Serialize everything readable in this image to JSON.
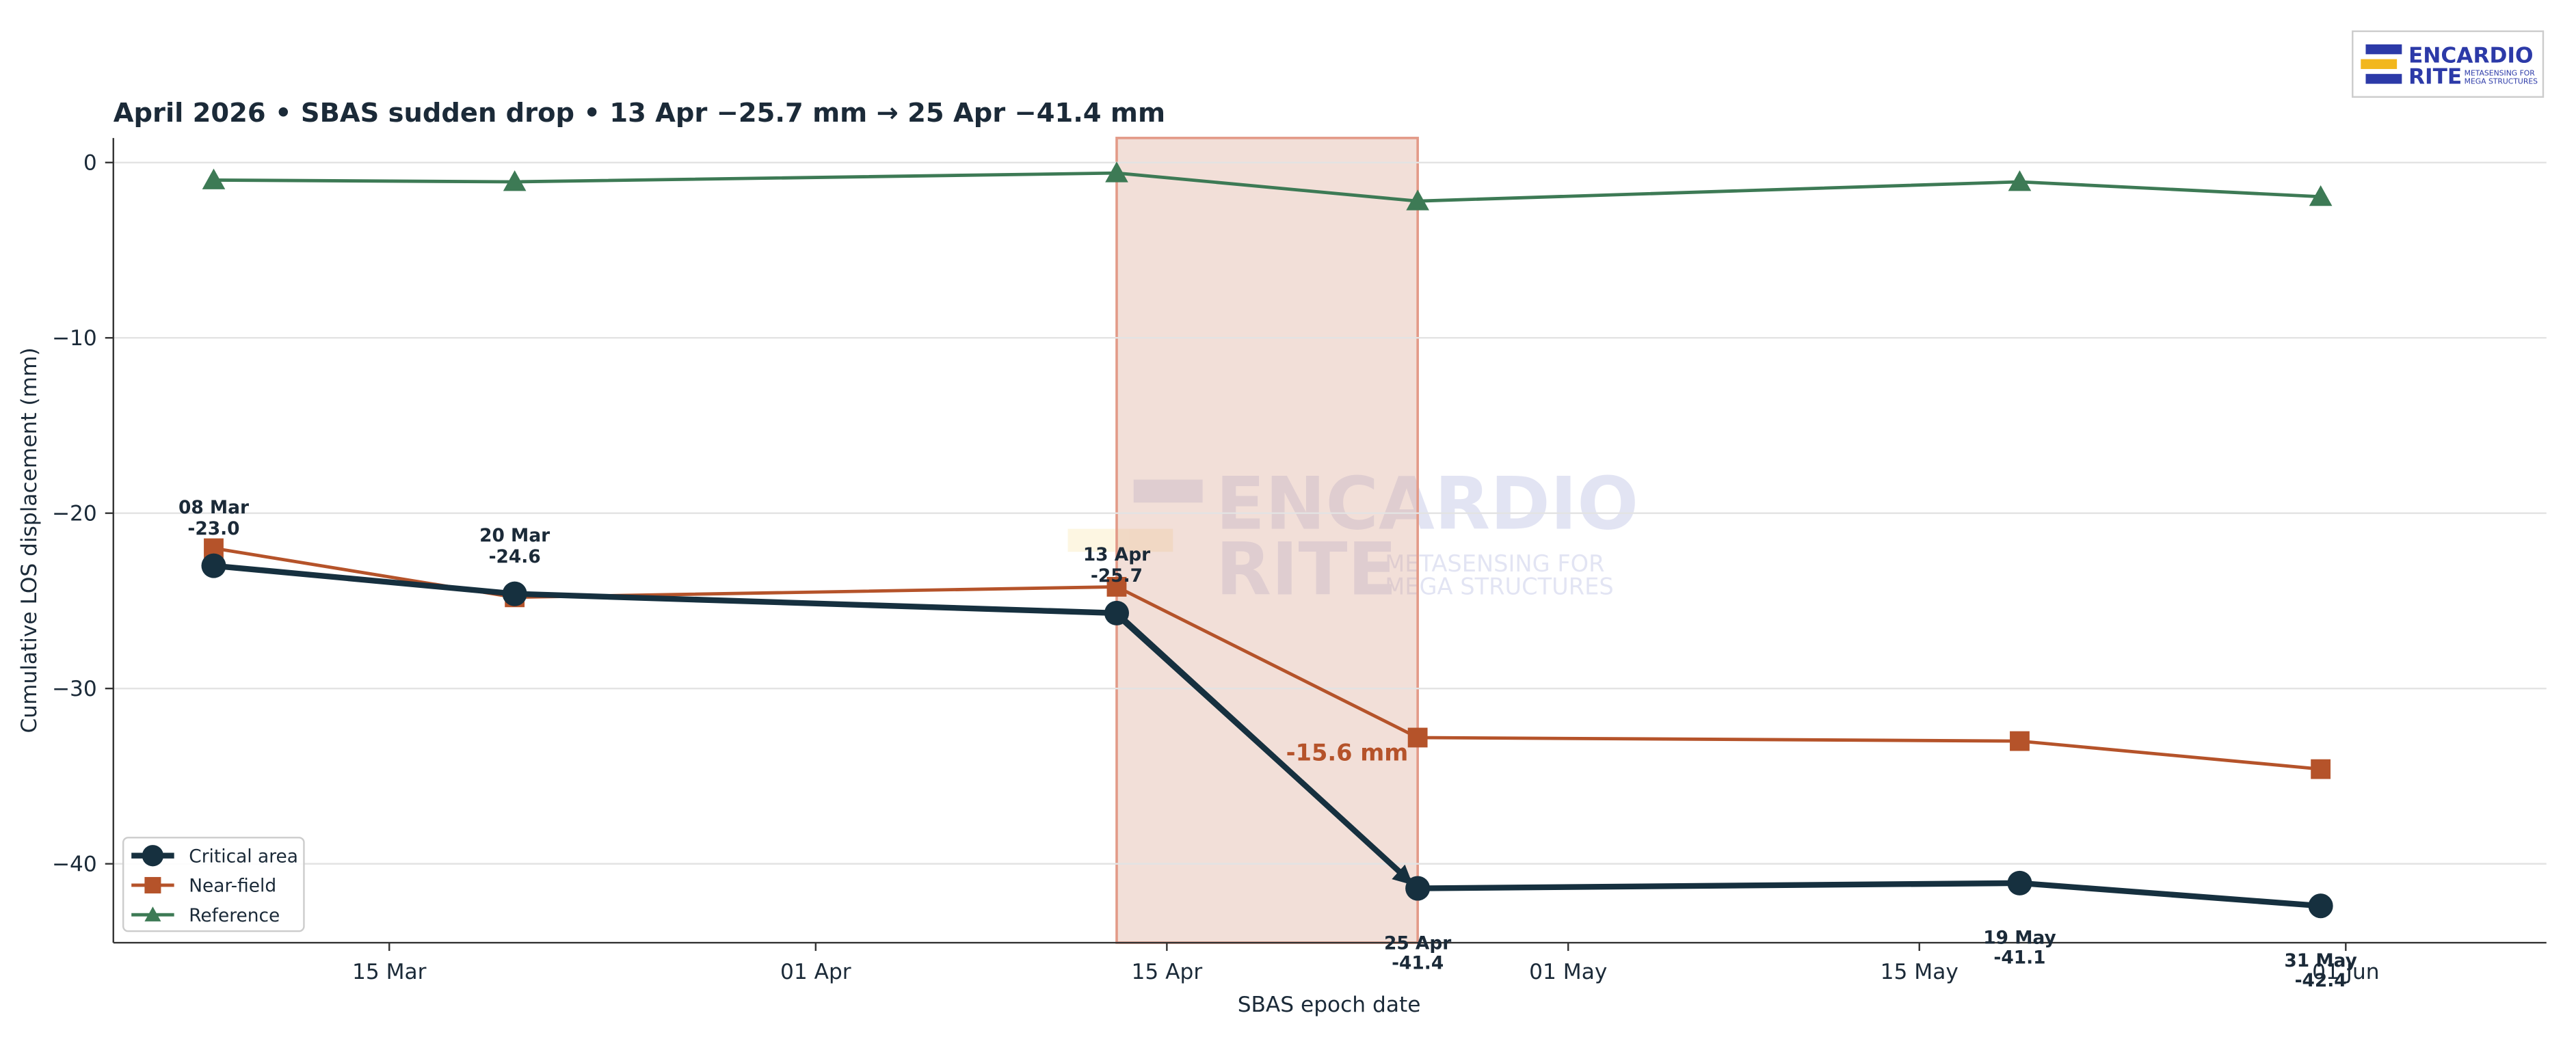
{
  "chart_data": {
    "type": "line",
    "title": "April 2026  •  SBAS sudden drop  •  13 Apr −25.7 mm  →  25 Apr −41.4 mm",
    "xlabel": "SBAS epoch date",
    "ylabel": "Cumulative LOS displacement (mm)",
    "x": [
      "08 Mar",
      "20 Mar",
      "13 Apr",
      "25 Apr",
      "19 May",
      "31 May"
    ],
    "series": [
      {
        "name": "Critical area",
        "color": "#16303f",
        "values": [
          -23.0,
          -24.6,
          -25.7,
          -41.4,
          -41.1,
          -42.4
        ],
        "value_labels": [
          "-23.0",
          "-24.6",
          "-25.7",
          "-41.4",
          "-41.1",
          "-42.4"
        ]
      },
      {
        "name": "Near-field",
        "color": "#b5532a",
        "values": [
          -22.0,
          -24.8,
          -24.2,
          -32.8,
          -33.0,
          -34.6
        ]
      },
      {
        "name": "Reference",
        "color": "#3d7a55",
        "values": [
          -1.0,
          -1.1,
          -0.6,
          -2.2,
          -1.1,
          -1.95
        ]
      }
    ],
    "xlim": [
      "04 Mar",
      "09 Jun"
    ],
    "xticks": [
      "15 Mar",
      "01 Apr",
      "15 Apr",
      "01 May",
      "15 May",
      "01 Jun"
    ],
    "ylim": [
      -44.5,
      1.4
    ],
    "yticks": [
      0,
      {
        "value": -10,
        "label": "−10"
      },
      {
        "value": -20,
        "label": "−20"
      },
      {
        "value": -30,
        "label": "−30"
      },
      {
        "value": -40,
        "label": "−40"
      }
    ],
    "grid": true,
    "legend": "lower left",
    "shaded_span": [
      "13 Apr",
      "25 Apr"
    ],
    "annotation": "-15.6 mm"
  },
  "logo": {
    "name": "ENCARDIO",
    "name2": "RITE",
    "tagline": "METASENSING FOR",
    "tagline2": "MEGA STRUCTURES"
  }
}
